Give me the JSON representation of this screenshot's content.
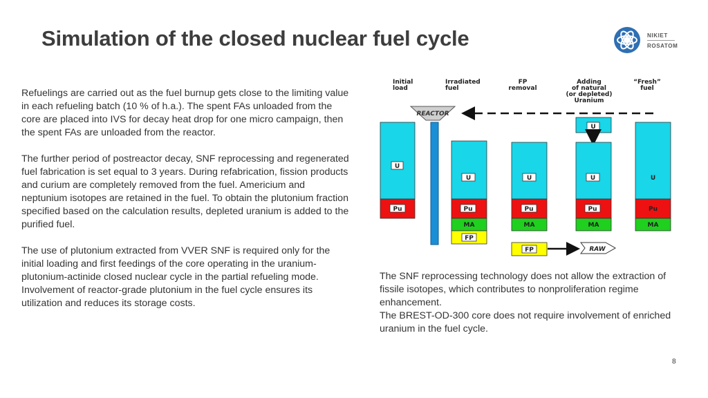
{
  "title": "Simulation of the closed nuclear fuel cycle",
  "logo": {
    "line1": "NIKIET",
    "line2": "ROSATOM"
  },
  "left_paragraphs": [
    "Refuelings are carried out as the fuel burnup gets close to the limiting value in each refueling batch (10 % of h.a.). The spent FAs unloaded from the core are placed into IVS for decay heat drop for one micro campaign, then the spent FAs are unloaded from the reactor.",
    "The further period of postreactor decay, SNF reprocessing and regenerated fuel fabrication is set equal to 3 years. During refabrication, fission products and curium are completely removed from the fuel. Americium and neptunium isotopes are retained in the fuel. To obtain the plutonium fraction specified based on the calculation results, depleted uranium is added to the purified fuel.",
    "The use of plutonium extracted from VVER SNF is required only for the initial loading and first feedings of the core operating in the uranium-plutonium-actinide closed nuclear cycle in the partial refueling mode.",
    "Involvement of reactor-grade plutonium in the fuel cycle ensures its utilization and reduces its storage costs."
  ],
  "right_paragraphs": [
    "The SNF reprocessing technology does not allow the extraction of fissile isotopes, which contributes to nonproliferation regime enhancement.",
    "The BREST-OD-300 core does not require involvement of enriched uranium in the fuel cycle."
  ],
  "diagram": {
    "headers": {
      "initial_1": "Initial",
      "initial_2": "load",
      "irradiated_1": "Irradiated",
      "irradiated_2": "fuel",
      "fp_1": "FP",
      "fp_2": "removal",
      "adding_1": "Adding",
      "adding_2": "of natural",
      "adding_3": "(or depleted)",
      "adding_4": "Uranium",
      "fresh_1": "“Fresh”",
      "fresh_2": "fuel"
    },
    "reactor_label": "REACTOR",
    "raw_label": "RAW",
    "labels": {
      "u": "U",
      "pu": "Pu",
      "ma": "MA",
      "fp": "FP"
    },
    "colors": {
      "uranium": "#19d6e8",
      "plutonium": "#ee1111",
      "ma": "#1fd01f",
      "fp": "#ffff00",
      "rod": "#1a8fd6"
    }
  },
  "page_number": "8"
}
